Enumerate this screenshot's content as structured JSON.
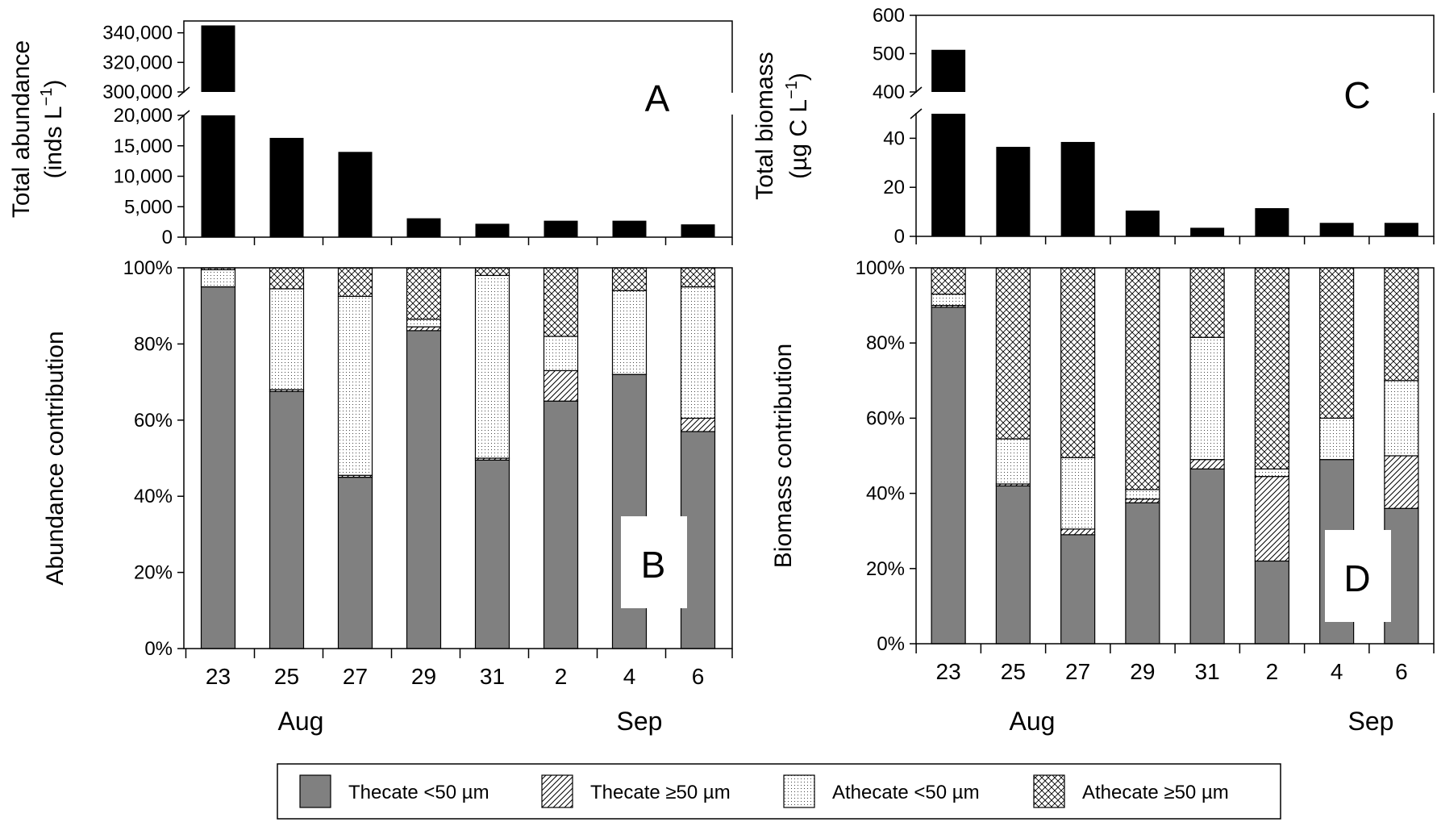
{
  "colors": {
    "thecate_small": "#808080",
    "bar_black": "#000000",
    "axis": "#000000",
    "background": "#ffffff"
  },
  "months": {
    "aug": "Aug",
    "sep": "Sep"
  },
  "legend": {
    "placement": "bottom-center",
    "entries": [
      {
        "key": "thecate_small",
        "label": "Thecate <50 µm",
        "pattern": "solid-gray"
      },
      {
        "key": "thecate_large",
        "label": "Thecate ≥50 µm",
        "pattern": "diagonal-hatch"
      },
      {
        "key": "athecate_small",
        "label": "Athecate <50 µm",
        "pattern": "dots"
      },
      {
        "key": "athecate_large",
        "label": "Athecate ≥50 µm",
        "pattern": "crosshatch"
      }
    ]
  },
  "chart_data": [
    {
      "panel": "A",
      "type": "bar",
      "ylabel": "Total abundance",
      "yunit": "(inds L",
      "yunit_sup": "−1",
      "yunit_close": ")",
      "categories": [
        "23",
        "25",
        "27",
        "29",
        "31",
        "2",
        "4",
        "6"
      ],
      "values": [
        345000,
        16300,
        14000,
        3100,
        2200,
        2700,
        2700,
        2100
      ],
      "broken_axis": true,
      "ylim_lower": [
        0,
        20000
      ],
      "ylim_upper": [
        300000,
        345000
      ],
      "yticks_lower": [
        "0",
        "5,000",
        "10,000",
        "15,000",
        "20,000"
      ],
      "yticks_upper": [
        "300,000",
        "320,000",
        "340,000"
      ]
    },
    {
      "panel": "B",
      "type": "bar",
      "stacked": true,
      "ylabel": "Abundance contribution",
      "categories": [
        "23",
        "25",
        "27",
        "29",
        "31",
        "2",
        "4",
        "6"
      ],
      "ylim": [
        0,
        100
      ],
      "yticks": [
        "0%",
        "20%",
        "40%",
        "60%",
        "80%",
        "100%"
      ],
      "series": [
        {
          "name": "Thecate <50 µm",
          "values": [
            95,
            67.5,
            45,
            83.5,
            49.5,
            65,
            72,
            57
          ]
        },
        {
          "name": "Thecate ≥50 µm",
          "values": [
            0,
            0.5,
            0.5,
            1,
            0.5,
            8,
            0,
            3.5
          ]
        },
        {
          "name": "Athecate <50 µm",
          "values": [
            4.5,
            26.5,
            47,
            2,
            48,
            9,
            22,
            34.5
          ]
        },
        {
          "name": "Athecate ≥50 µm",
          "values": [
            0.5,
            5.5,
            7.5,
            13.5,
            2,
            18,
            6,
            5
          ]
        }
      ]
    },
    {
      "panel": "C",
      "type": "bar",
      "ylabel": "Total biomass",
      "yunit": "(µg C L",
      "yunit_sup": "−1",
      "yunit_close": ")",
      "categories": [
        "23",
        "25",
        "27",
        "29",
        "31",
        "2",
        "4",
        "6"
      ],
      "values": [
        510,
        36.5,
        38.5,
        10.5,
        3.5,
        11.5,
        5.5,
        5.5
      ],
      "broken_axis": true,
      "ylim_lower": [
        0,
        50
      ],
      "ylim_upper": [
        400,
        600
      ],
      "yticks_lower": [
        "0",
        "20",
        "40"
      ],
      "yticks_upper": [
        "400",
        "500",
        "600"
      ]
    },
    {
      "panel": "D",
      "type": "bar",
      "stacked": true,
      "ylabel": "Biomass contribution",
      "categories": [
        "23",
        "25",
        "27",
        "29",
        "31",
        "2",
        "4",
        "6"
      ],
      "ylim": [
        0,
        100
      ],
      "yticks": [
        "0%",
        "20%",
        "40%",
        "60%",
        "80%",
        "100%"
      ],
      "series": [
        {
          "name": "Thecate <50 µm",
          "values": [
            89.5,
            42,
            29,
            37.5,
            46.5,
            22,
            49,
            36
          ]
        },
        {
          "name": "Thecate ≥50 µm",
          "values": [
            0.5,
            0.5,
            1.5,
            1,
            2.5,
            22.5,
            0,
            14
          ]
        },
        {
          "name": "Athecate <50 µm",
          "values": [
            3,
            12,
            19,
            2.5,
            32.5,
            2,
            11,
            20
          ]
        },
        {
          "name": "Athecate ≥50 µm",
          "values": [
            7,
            45.5,
            50.5,
            59,
            18.5,
            53.5,
            40,
            30
          ]
        }
      ]
    }
  ]
}
